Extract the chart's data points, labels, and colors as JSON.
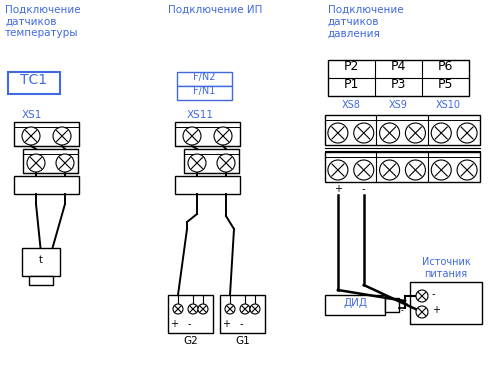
{
  "title_left": "Подключение\nдатчиков\nтемпературы",
  "title_mid": "Подключение ИП",
  "title_right": "Подключение\nдатчиков\nдавления",
  "tc1_label": "ТС1",
  "fn_labels": [
    "F/N2",
    "F/N1"
  ],
  "p_labels_top": [
    "P2",
    "P4",
    "P6"
  ],
  "p_labels_bot": [
    "P1",
    "P3",
    "P5"
  ],
  "xs_labels": [
    "XS8",
    "XS9",
    "XS10"
  ],
  "xs1_label": "XS1",
  "xs11_label": "XS11",
  "g_labels": [
    "G2",
    "G1"
  ],
  "did_label": "ДИД",
  "source_label": "Источник\nпитания",
  "text_color_blue": "#4169E1",
  "text_color_black": "#000000",
  "bg_color": "#ffffff",
  "line_color": "#000000",
  "figw": 4.95,
  "figh": 3.86,
  "dpi": 100
}
